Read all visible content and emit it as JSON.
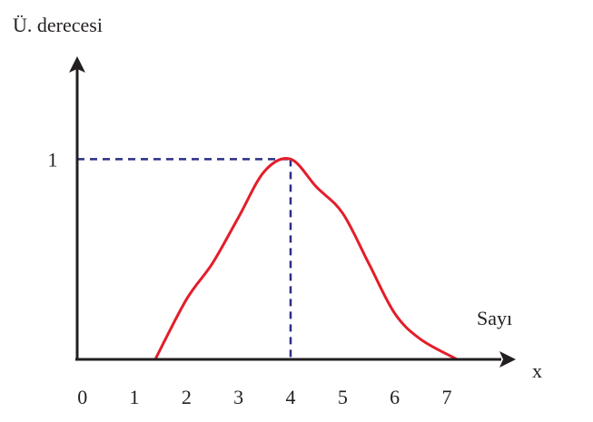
{
  "chart_data": {
    "type": "line",
    "y_label": "Ü. derecesi",
    "x_label": "Sayı",
    "x_symbol": "x",
    "x": [
      1.4,
      2,
      2.5,
      3,
      3.5,
      4,
      4.5,
      5,
      5.5,
      6,
      6.5,
      7.2
    ],
    "series": [
      {
        "color": "#e31e2a",
        "values": [
          0,
          0.3,
          0.48,
          0.71,
          0.94,
          1,
          0.86,
          0.73,
          0.48,
          0.23,
          0.1,
          0
        ]
      }
    ],
    "xlim": [
      -0.1,
      8.1
    ],
    "ylim": [
      0,
      1.5
    ],
    "xticks": [
      0,
      1,
      2,
      3,
      4,
      5,
      6,
      7
    ],
    "yticks": [
      1
    ],
    "guide_color": "#2b2f86"
  }
}
